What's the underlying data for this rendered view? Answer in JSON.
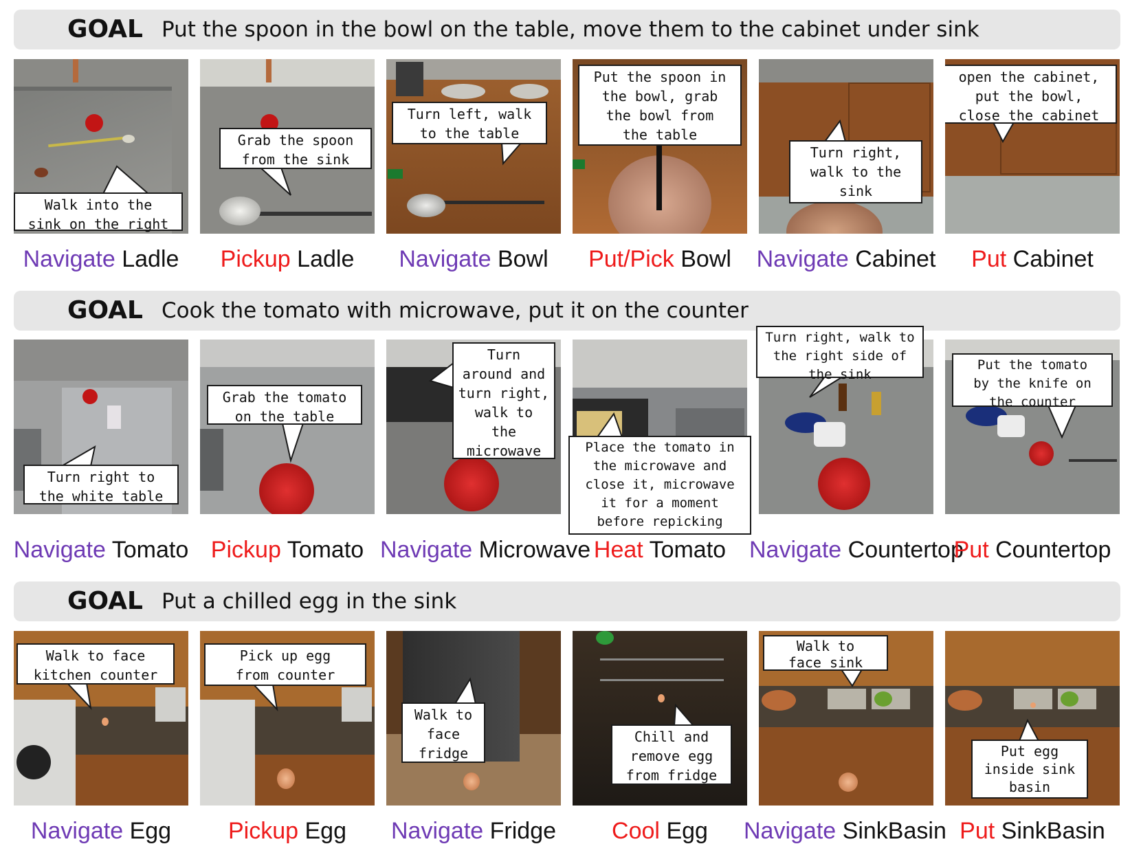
{
  "colors": {
    "navigate": "#6e3ab4",
    "manip": "#ee1b1b",
    "goal_bar": "#e6e6e6"
  },
  "goal_word": "GOAL",
  "rows": [
    {
      "goal": "Put the spoon in the bowl on the table, move them to the cabinet under sink",
      "steps": [
        {
          "action": "Navigate",
          "object": "Ladle",
          "kind": "navigate",
          "bubble": "Walk into the\nsink on the right",
          "scene": "sink-top-view"
        },
        {
          "action": "Pickup",
          "object": "Ladle",
          "kind": "manip",
          "bubble": "Grab the spoon\nfrom the sink",
          "scene": "ladle-in-hand"
        },
        {
          "action": "Navigate",
          "object": "Bowl",
          "kind": "navigate",
          "bubble": "Turn left, walk\nto the table",
          "scene": "table-with-bowls"
        },
        {
          "action": "Put/Pick",
          "object": "Bowl",
          "kind": "manip",
          "bubble": "Put the spoon in\nthe bowl, grab\nthe bowl from\nthe table",
          "scene": "bowl-with-spoon"
        },
        {
          "action": "Navigate",
          "object": "Cabinet",
          "kind": "navigate",
          "bubble": "Turn right,\nwalk to the\nsink",
          "scene": "cabinet-approach"
        },
        {
          "action": "Put",
          "object": "Cabinet",
          "kind": "manip",
          "bubble": "open the cabinet,\nput the bowl,\nclose the cabinet",
          "scene": "cabinet-closed"
        }
      ]
    },
    {
      "goal": "Cook the tomato with microwave, put it on the counter",
      "steps": [
        {
          "action": "Navigate",
          "object": "Tomato",
          "kind": "navigate",
          "bubble": "Turn right to\nthe white table",
          "scene": "white-table"
        },
        {
          "action": "Pickup",
          "object": "Tomato",
          "kind": "manip",
          "bubble": "Grab the tomato\non the table",
          "scene": "tomato-in-hand"
        },
        {
          "action": "Navigate",
          "object": "Microwave",
          "kind": "navigate",
          "bubble": "Turn\naround and\nturn right,\nwalk to\nthe\nmicrowave",
          "scene": "microwave-wall"
        },
        {
          "action": "Heat",
          "object": "Tomato",
          "kind": "manip",
          "bubble": "Place the tomato in\nthe microwave and\nclose it, microwave\nit for a moment\nbefore repicking",
          "scene": "microwave-open"
        },
        {
          "action": "Navigate",
          "object": "Countertop",
          "kind": "navigate",
          "bubble": "Turn right, walk to\nthe right side of\nthe sink",
          "scene": "counter-with-tomato"
        },
        {
          "action": "Put",
          "object": "Countertop",
          "kind": "manip",
          "bubble": "Put the tomato\nby the knife on\nthe counter",
          "scene": "tomato-on-counter"
        }
      ]
    },
    {
      "goal": "Put a chilled egg in the sink",
      "steps": [
        {
          "action": "Navigate",
          "object": "Egg",
          "kind": "navigate",
          "bubble": "Walk to face\nkitchen counter",
          "scene": "stove-counter"
        },
        {
          "action": "Pickup",
          "object": "Egg",
          "kind": "manip",
          "bubble": "Pick up egg\nfrom counter",
          "scene": "egg-in-hand"
        },
        {
          "action": "Navigate",
          "object": "Fridge",
          "kind": "navigate",
          "bubble": "Walk to\nface\nfridge",
          "scene": "fridge-door"
        },
        {
          "action": "Cool",
          "object": "Egg",
          "kind": "manip",
          "bubble": "Chill and\nremove egg\nfrom fridge",
          "scene": "fridge-inside"
        },
        {
          "action": "Navigate",
          "object": "SinkBasin",
          "kind": "navigate",
          "bubble": "Walk to\nface sink",
          "scene": "sink-counter"
        },
        {
          "action": "Put",
          "object": "SinkBasin",
          "kind": "manip",
          "bubble": "Put egg\ninside sink\nbasin",
          "scene": "egg-in-sink"
        }
      ]
    }
  ]
}
